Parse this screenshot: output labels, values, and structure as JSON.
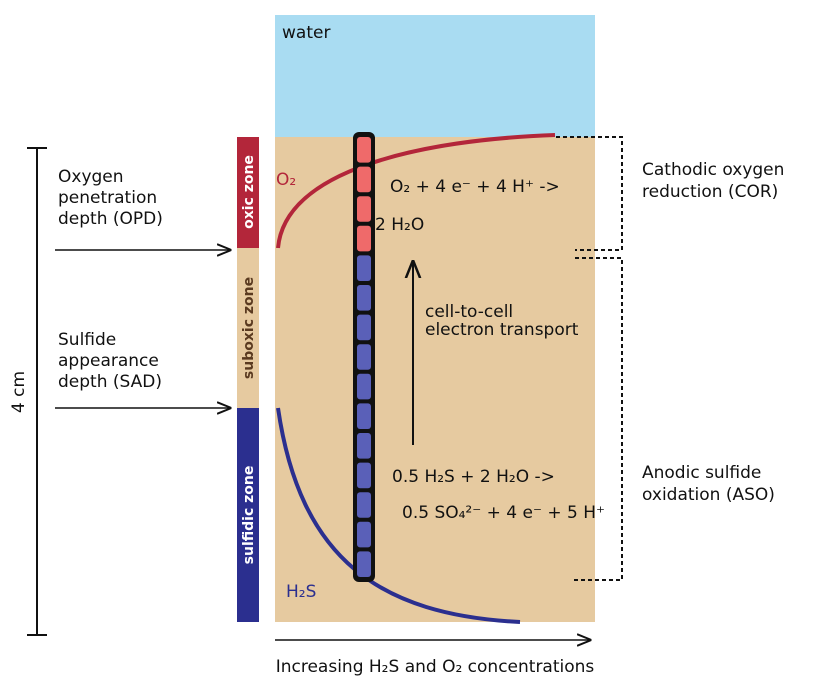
{
  "water": "water",
  "zones": {
    "oxic": "oxic zone",
    "suboxic": "suboxic zone",
    "sulfidic": "sulfidic zone"
  },
  "curves": {
    "oxygen": "O₂",
    "sulfide": "H₂S"
  },
  "left": {
    "opd": [
      "Oxygen",
      "penetration",
      "depth (OPD)"
    ],
    "sad": [
      "Sulfide",
      "appearance",
      "depth (SAD)"
    ],
    "scale": "4 cm"
  },
  "right": {
    "cor": [
      "Cathodic oxygen",
      "reduction (COR)"
    ],
    "aso": [
      "Anodic sulfide",
      "oxidation (ASO)"
    ]
  },
  "reactions": {
    "cathode": [
      "O₂ + 4 e⁻ + 4 H⁺ ->",
      "2 H₂O"
    ],
    "transport": [
      "cell-to-cell",
      "electron transport"
    ],
    "anode": [
      "0.5 H₂S + 2 H₂O ->",
      "0.5 SO₄²⁻ + 4 e⁻ + 5 H⁺"
    ]
  },
  "x_axis": "Increasing H₂S and O₂ concentrations"
}
